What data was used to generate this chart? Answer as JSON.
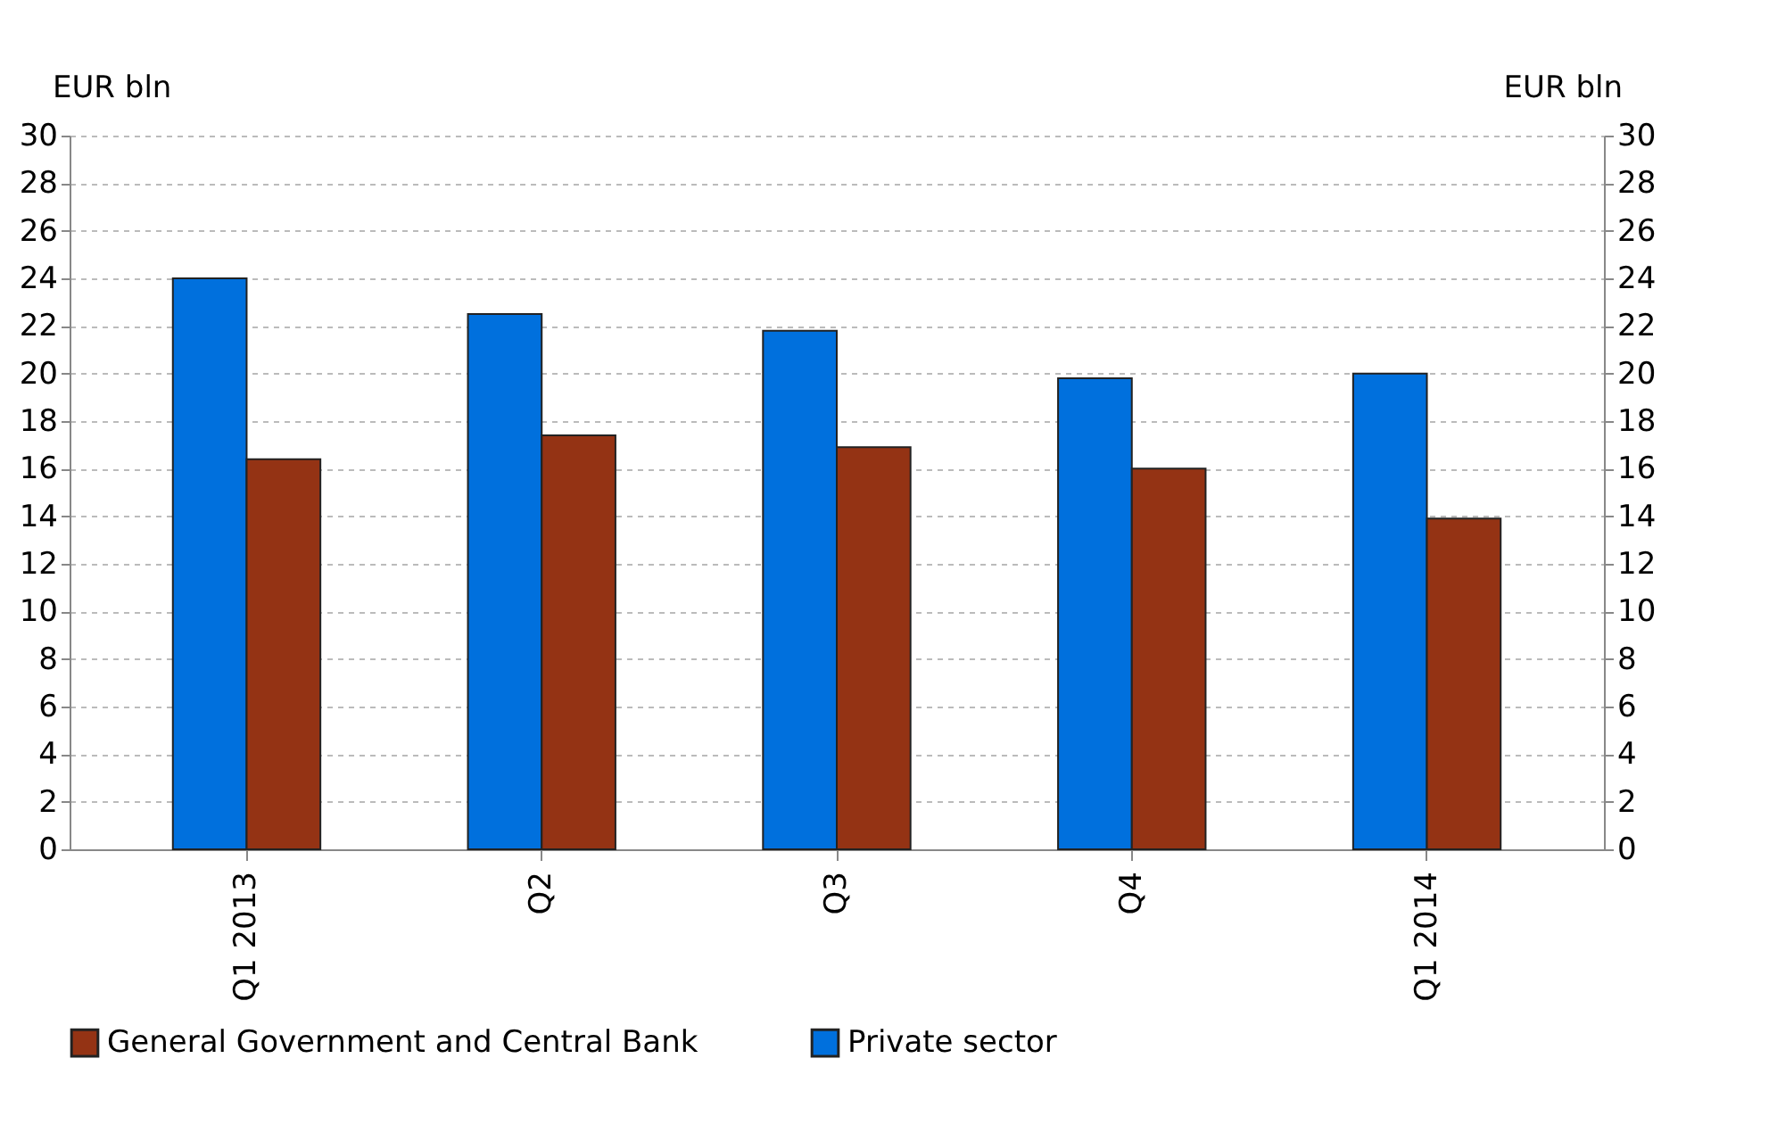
{
  "chart_data": {
    "type": "bar",
    "categories": [
      "Q1 2013",
      "Q2",
      "Q3",
      "Q4",
      "Q1 2014"
    ],
    "series": [
      {
        "name": "Private sector",
        "color": "#0070dd",
        "values": [
          24,
          22.5,
          21.8,
          19.8,
          20
        ]
      },
      {
        "name": "General Government and Central Bank",
        "color": "#943314",
        "values": [
          16.4,
          17.4,
          16.9,
          16,
          13.9
        ]
      }
    ],
    "ylabel": "EUR bln",
    "y2label": "EUR bln",
    "ylim": [
      0,
      30
    ],
    "yticks": [
      0,
      2,
      4,
      6,
      8,
      10,
      12,
      14,
      16,
      18,
      20,
      22,
      24,
      26,
      28,
      30
    ],
    "y2lim": [
      0,
      30
    ],
    "y2ticks": [
      0,
      2,
      4,
      6,
      8,
      10,
      12,
      14,
      16,
      18,
      20,
      22,
      24,
      26,
      28,
      30
    ],
    "grid": "y",
    "legend": "bottom"
  }
}
